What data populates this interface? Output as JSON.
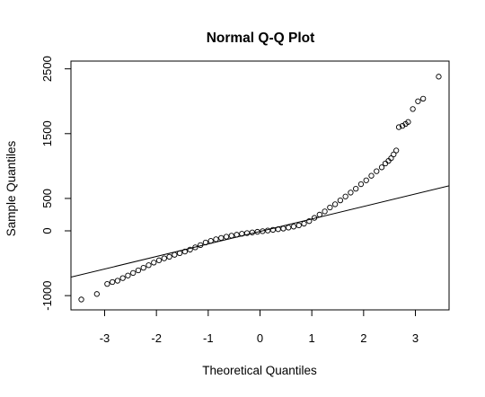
{
  "chart_data": {
    "type": "scatter",
    "title": "Normal Q-Q Plot",
    "xlabel": "Theoretical Quantiles",
    "ylabel": "Sample Quantiles",
    "xlim": [
      -3.65,
      3.65
    ],
    "ylim": [
      -1220,
      2620
    ],
    "x_ticks": [
      -3,
      -2,
      -1,
      0,
      1,
      2,
      3
    ],
    "x_tick_labels": [
      "-3",
      "-2",
      "-1",
      "0",
      "1",
      "2",
      "3"
    ],
    "y_ticks": [
      -1000,
      0,
      500,
      1500,
      2500
    ],
    "y_tick_labels": [
      "-1000",
      "0",
      "500",
      "1500",
      "2500"
    ],
    "grid": false,
    "legend": "none",
    "marker": "open-circle",
    "reference_line": {
      "slope": 193,
      "intercept": -10
    },
    "series": [
      {
        "x": [
          -3.45,
          -3.15,
          -2.95,
          -2.85,
          -2.75,
          -2.65,
          -2.55,
          -2.45,
          -2.35,
          -2.25,
          -2.15,
          -2.05,
          -1.95,
          -1.85,
          -1.75,
          -1.65,
          -1.55,
          -1.45,
          -1.35,
          -1.25,
          -1.15,
          -1.05,
          -0.95,
          -0.85,
          -0.75,
          -0.65,
          -0.55,
          -0.45,
          -0.35,
          -0.25,
          -0.15,
          -0.05,
          0.05,
          0.15,
          0.25,
          0.35,
          0.45,
          0.55,
          0.65,
          0.75,
          0.85,
          0.95,
          1.05,
          1.15,
          1.25,
          1.35,
          1.45,
          1.55,
          1.65,
          1.75,
          1.85,
          1.95,
          2.05,
          2.15,
          2.25,
          2.35,
          2.42,
          2.48,
          2.53,
          2.58,
          2.63,
          2.68,
          2.75,
          2.81,
          2.86,
          2.95,
          3.05,
          3.15,
          3.45
        ],
        "y": [
          -1060,
          -975,
          -820,
          -790,
          -770,
          -730,
          -690,
          -650,
          -610,
          -570,
          -530,
          -490,
          -455,
          -425,
          -400,
          -370,
          -345,
          -320,
          -290,
          -255,
          -220,
          -180,
          -155,
          -130,
          -110,
          -90,
          -75,
          -60,
          -45,
          -35,
          -25,
          -15,
          -5,
          5,
          15,
          25,
          35,
          50,
          65,
          85,
          110,
          150,
          200,
          250,
          300,
          360,
          410,
          470,
          530,
          590,
          650,
          720,
          780,
          850,
          920,
          980,
          1040,
          1080,
          1120,
          1180,
          1240,
          1600,
          1620,
          1650,
          1680,
          1880,
          2000,
          2040,
          2380
        ]
      }
    ]
  }
}
